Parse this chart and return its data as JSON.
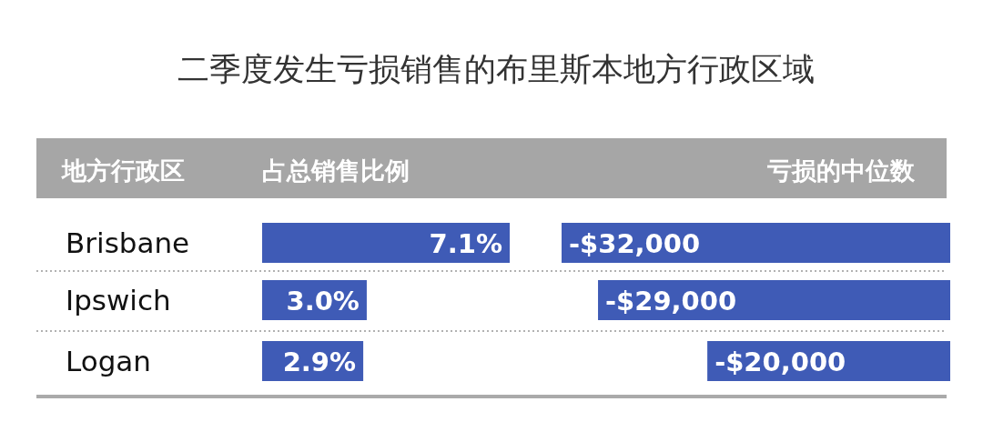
{
  "chart_data": [
    {
      "type": "bar",
      "orientation": "horizontal",
      "title": "二季度发生亏损销售的布里斯本地方行政区域",
      "ylabel": "地方行政区",
      "xlabel": "占总销售比例",
      "categories": [
        "Brisbane",
        "Ipswich",
        "Logan"
      ],
      "values": [
        7.1,
        3.0,
        2.9
      ],
      "value_labels": [
        "7.1%",
        "3.0%",
        "2.9%"
      ],
      "color": "#3f5bb6"
    },
    {
      "type": "bar",
      "orientation": "horizontal",
      "xlabel": "亏损的中位数",
      "categories": [
        null,
        null,
        null
      ],
      "values": [
        -32000,
        -29000,
        -20000
      ],
      "value_labels": [
        "-$32,000",
        "-$29,000",
        "-$20,000"
      ],
      "color": "#3f5bb6"
    }
  ]
}
